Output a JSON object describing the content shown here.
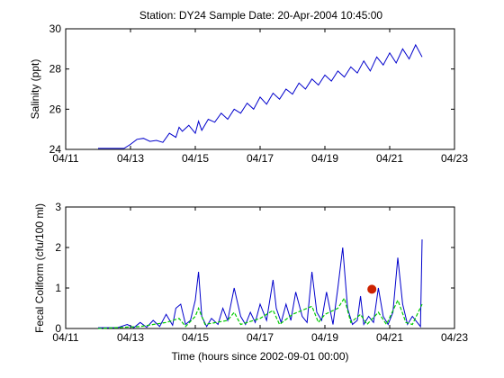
{
  "title": "Station: DY24  Sample Date: 20-Apr-2004 10:45:00",
  "chart_data": [
    {
      "type": "line",
      "name": "salinity-chart",
      "title": "Station: DY24  Sample Date: 20-Apr-2004 10:45:00",
      "xlabel": "",
      "ylabel": "Salinity (ppt)",
      "xlim": [
        11,
        23
      ],
      "ylim": [
        24,
        30
      ],
      "xticks": [
        11,
        13,
        15,
        17,
        19,
        21,
        23
      ],
      "xtick_labels": [
        "04/11",
        "04/13",
        "04/15",
        "04/17",
        "04/19",
        "04/21",
        "04/23"
      ],
      "yticks": [
        24,
        26,
        28,
        30
      ],
      "ytick_labels": [
        "24",
        "26",
        "28",
        "30"
      ],
      "grid": false,
      "series": [
        {
          "color": "#0000cc",
          "x": [
            12.0,
            12.8,
            13.0,
            13.2,
            13.4,
            13.6,
            13.8,
            14.0,
            14.2,
            14.4,
            14.5,
            14.6,
            14.8,
            15.0,
            15.1,
            15.2,
            15.4,
            15.6,
            15.8,
            16.0,
            16.2,
            16.4,
            16.6,
            16.8,
            17.0,
            17.2,
            17.4,
            17.6,
            17.8,
            18.0,
            18.2,
            18.4,
            18.6,
            18.8,
            19.0,
            19.2,
            19.4,
            19.6,
            19.8,
            20.0,
            20.2,
            20.4,
            20.6,
            20.8,
            21.0,
            21.2,
            21.4,
            21.6,
            21.8,
            22.0
          ],
          "y": [
            24.05,
            24.05,
            24.25,
            24.5,
            24.55,
            24.4,
            24.45,
            24.35,
            24.8,
            24.6,
            25.1,
            24.9,
            25.2,
            24.8,
            25.4,
            24.95,
            25.5,
            25.35,
            25.8,
            25.5,
            26.0,
            25.8,
            26.3,
            26.0,
            26.6,
            26.25,
            26.8,
            26.5,
            27.0,
            26.75,
            27.3,
            27.0,
            27.5,
            27.2,
            27.7,
            27.4,
            27.9,
            27.6,
            28.1,
            27.8,
            28.4,
            27.9,
            28.6,
            28.2,
            28.8,
            28.3,
            29.0,
            28.5,
            29.2,
            28.6
          ]
        }
      ]
    },
    {
      "type": "line",
      "name": "fecal-coliform-chart",
      "title": "",
      "xlabel": "Time (hours since 2002-09-01 00:00)",
      "ylabel": "Fecal Coliform (cfu/100 ml)",
      "xlim": [
        11,
        23
      ],
      "ylim": [
        0,
        3
      ],
      "xticks": [
        11,
        13,
        15,
        17,
        19,
        21,
        23
      ],
      "xtick_labels": [
        "04/11",
        "04/13",
        "04/15",
        "04/17",
        "04/19",
        "04/21",
        "04/23"
      ],
      "yticks": [
        0,
        1,
        2,
        3
      ],
      "ytick_labels": [
        "0",
        "1",
        "2",
        "3"
      ],
      "grid": false,
      "series": [
        {
          "color": "#0000cc",
          "style": "solid",
          "x": [
            12.0,
            12.6,
            12.9,
            13.1,
            13.3,
            13.5,
            13.7,
            13.9,
            14.1,
            14.3,
            14.4,
            14.55,
            14.7,
            14.85,
            15.0,
            15.1,
            15.2,
            15.35,
            15.5,
            15.7,
            15.85,
            16.0,
            16.2,
            16.4,
            16.55,
            16.7,
            16.85,
            17.0,
            17.2,
            17.4,
            17.5,
            17.65,
            17.8,
            17.95,
            18.1,
            18.3,
            18.45,
            18.6,
            18.75,
            18.9,
            19.05,
            19.25,
            19.4,
            19.55,
            19.7,
            19.85,
            20.0,
            20.1,
            20.2,
            20.35,
            20.5,
            20.65,
            20.8,
            20.95,
            21.1,
            21.25,
            21.4,
            21.55,
            21.7,
            21.85,
            21.95,
            22.0
          ],
          "y": [
            0.02,
            0.02,
            0.1,
            0.02,
            0.15,
            0.03,
            0.2,
            0.05,
            0.35,
            0.08,
            0.5,
            0.6,
            0.1,
            0.2,
            0.7,
            1.4,
            0.3,
            0.05,
            0.25,
            0.1,
            0.5,
            0.2,
            1.0,
            0.3,
            0.1,
            0.4,
            0.15,
            0.6,
            0.2,
            1.2,
            0.5,
            0.15,
            0.6,
            0.2,
            0.9,
            0.3,
            0.15,
            1.4,
            0.4,
            0.2,
            0.9,
            0.1,
            1.0,
            2.0,
            0.5,
            0.1,
            0.2,
            0.8,
            0.1,
            0.3,
            0.15,
            1.0,
            0.3,
            0.1,
            0.4,
            1.75,
            0.6,
            0.1,
            0.3,
            0.15,
            0.05,
            2.2
          ]
        },
        {
          "color": "#00cc00",
          "style": "dashed",
          "x": [
            12.0,
            13.3,
            13.7,
            14.1,
            14.5,
            14.7,
            15.0,
            15.1,
            15.3,
            16.0,
            16.2,
            16.4,
            17.0,
            17.4,
            17.6,
            18.0,
            18.6,
            18.8,
            19.0,
            19.4,
            19.6,
            19.8,
            20.1,
            20.3,
            20.65,
            20.9,
            21.25,
            21.5,
            21.7,
            22.0
          ],
          "y": [
            0.0,
            0.05,
            0.1,
            0.15,
            0.25,
            0.05,
            0.3,
            0.5,
            0.1,
            0.2,
            0.4,
            0.1,
            0.25,
            0.45,
            0.1,
            0.35,
            0.55,
            0.15,
            0.35,
            0.5,
            0.75,
            0.15,
            0.35,
            0.1,
            0.4,
            0.1,
            0.7,
            0.15,
            0.1,
            0.6
          ]
        },
        {
          "color": "#cc2200",
          "style": "marker",
          "x": [
            20.45
          ],
          "y": [
            0.97
          ]
        }
      ]
    }
  ]
}
